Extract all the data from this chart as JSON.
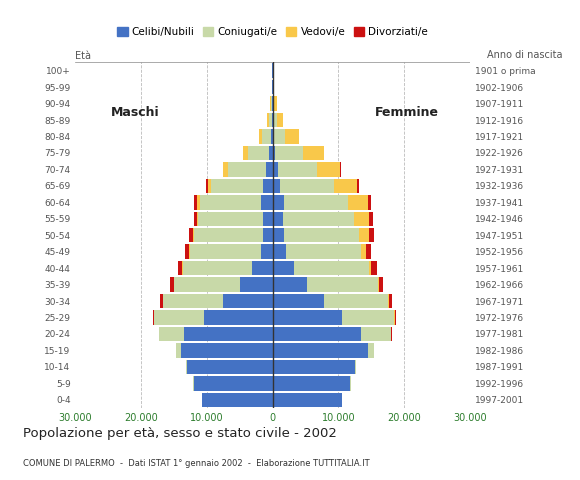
{
  "age_groups": [
    "0-4",
    "5-9",
    "10-14",
    "15-19",
    "20-24",
    "25-29",
    "30-34",
    "35-39",
    "40-44",
    "45-49",
    "50-54",
    "55-59",
    "60-64",
    "65-69",
    "70-74",
    "75-79",
    "80-84",
    "85-89",
    "90-94",
    "95-99",
    "100+"
  ],
  "birth_years": [
    "1997-2001",
    "1992-1996",
    "1987-1991",
    "1982-1986",
    "1977-1981",
    "1972-1976",
    "1967-1971",
    "1962-1966",
    "1957-1961",
    "1952-1956",
    "1947-1951",
    "1942-1946",
    "1937-1941",
    "1932-1936",
    "1927-1931",
    "1922-1926",
    "1917-1921",
    "1912-1916",
    "1907-1911",
    "1902-1906",
    "1901 o prima"
  ],
  "male": {
    "celibe": [
      10800,
      12000,
      13000,
      14000,
      13500,
      10500,
      7500,
      5000,
      3200,
      1800,
      1500,
      1500,
      1800,
      1500,
      1000,
      600,
      250,
      120,
      50,
      30,
      20
    ],
    "coniugato": [
      10,
      50,
      150,
      700,
      3800,
      7500,
      9200,
      10000,
      10500,
      10800,
      10500,
      9800,
      9300,
      7800,
      5800,
      3200,
      1400,
      450,
      200,
      80,
      40
    ],
    "vedovo": [
      0,
      0,
      0,
      0,
      5,
      10,
      15,
      30,
      60,
      100,
      150,
      250,
      450,
      600,
      700,
      650,
      450,
      220,
      100,
      40,
      15
    ],
    "divorziato": [
      0,
      0,
      0,
      10,
      50,
      150,
      350,
      550,
      650,
      600,
      550,
      450,
      350,
      180,
      90,
      40,
      10,
      5,
      0,
      0,
      0
    ]
  },
  "female": {
    "nubile": [
      10500,
      11800,
      12500,
      14500,
      13500,
      10500,
      7800,
      5200,
      3300,
      2000,
      1700,
      1600,
      1700,
      1200,
      750,
      400,
      150,
      60,
      30,
      15,
      10
    ],
    "coniugata": [
      10,
      80,
      250,
      900,
      4500,
      8000,
      9800,
      10800,
      11300,
      11500,
      11500,
      10800,
      9800,
      8200,
      6000,
      4200,
      1800,
      600,
      250,
      80,
      30
    ],
    "vedova": [
      0,
      0,
      0,
      5,
      20,
      50,
      100,
      200,
      400,
      750,
      1400,
      2200,
      3000,
      3500,
      3500,
      3200,
      2000,
      900,
      350,
      100,
      30
    ],
    "divorziata": [
      0,
      0,
      0,
      15,
      70,
      200,
      450,
      650,
      850,
      780,
      750,
      650,
      450,
      280,
      130,
      60,
      20,
      5,
      0,
      0,
      0
    ]
  },
  "colors": {
    "celibe": "#4472C4",
    "coniugato": "#C8D9A8",
    "vedovo": "#F9C84A",
    "divorziato": "#CC1111"
  },
  "xlim": 30000,
  "xtick_vals": [
    -30000,
    -20000,
    -10000,
    0,
    10000,
    20000,
    30000
  ],
  "xtick_labels": [
    "30.000",
    "20.000",
    "10.000",
    "0",
    "10.000",
    "20.000",
    "30.000"
  ],
  "title": "Popolazione per età, sesso e stato civile - 2002",
  "subtitle": "COMUNE DI PALERMO  -  Dati ISTAT 1° gennaio 2002  -  Elaborazione TUTTITALIA.IT",
  "legend_labels": [
    "Celibi/Nubili",
    "Coniugati/e",
    "Vedovi/e",
    "Divorziati/e"
  ],
  "ylabel_eta": "Età",
  "label_maschi": "Maschi",
  "label_femmine": "Femmine",
  "label_anno": "Anno di nascita",
  "background_color": "#ffffff",
  "grid_color": "#bbbbbb",
  "center_line_color": "#333333",
  "tick_color": "#555555",
  "xtick_color": "#2d7d2d"
}
